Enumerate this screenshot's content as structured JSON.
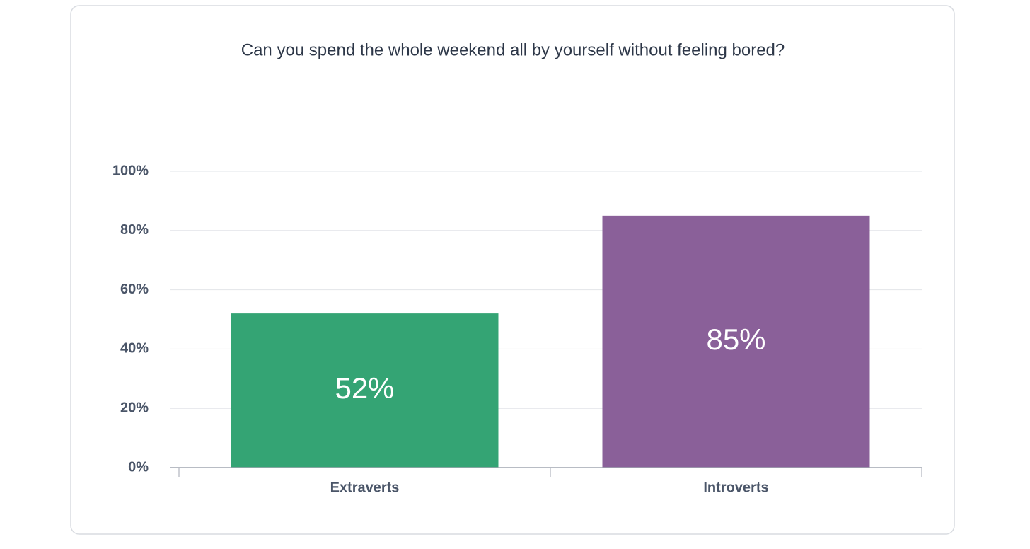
{
  "chart_data": {
    "type": "bar",
    "title": "Can you spend the whole weekend all by yourself without feeling bored?",
    "categories": [
      "Extraverts",
      "Introverts"
    ],
    "values": [
      52,
      85
    ],
    "value_labels": [
      "52%",
      "85%"
    ],
    "colors": [
      "#34a474",
      "#8a6099"
    ],
    "ylim": [
      0,
      100
    ],
    "yticks": [
      {
        "value": 0,
        "label": "0%"
      },
      {
        "value": 20,
        "label": "20%"
      },
      {
        "value": 40,
        "label": "40%"
      },
      {
        "value": 60,
        "label": "60%"
      },
      {
        "value": 80,
        "label": "80%"
      },
      {
        "value": 100,
        "label": "100%"
      }
    ],
    "grid": true
  }
}
